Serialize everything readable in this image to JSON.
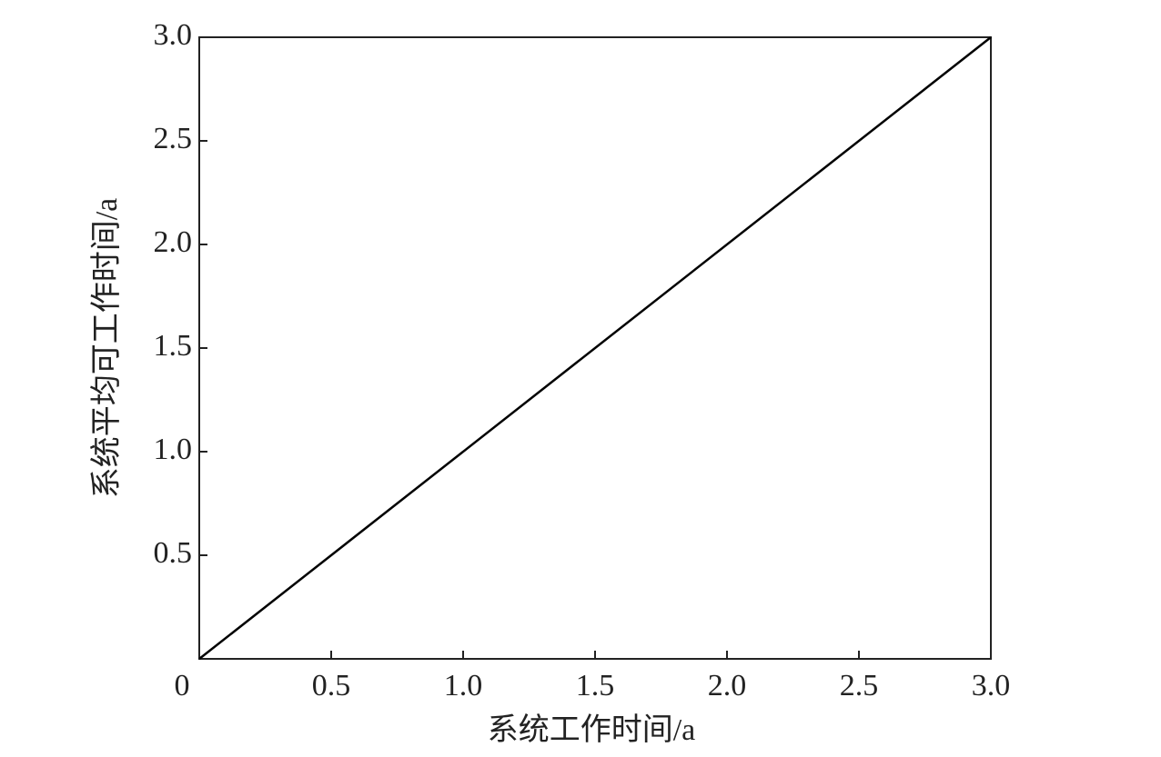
{
  "chart_data": {
    "type": "line",
    "xlabel": "系统工作时间/a",
    "ylabel": "系统平均可工作时间/a",
    "x": [
      0,
      3
    ],
    "values": [
      0,
      3
    ],
    "color": "#000000",
    "xlim": [
      0,
      3
    ],
    "ylim": [
      0,
      3
    ],
    "xticks": [
      0,
      0.5,
      {
        "value": 1,
        "label": "1.0"
      },
      1.5,
      {
        "value": 2,
        "label": "2.0"
      },
      2.5,
      {
        "value": 3,
        "label": "3.0"
      }
    ],
    "yticks": [
      0.5,
      {
        "value": 1,
        "label": "1.0"
      },
      1.5,
      {
        "value": 2,
        "label": "2.0"
      },
      2.5,
      {
        "value": 3,
        "label": "3.0"
      }
    ],
    "grid": false
  }
}
